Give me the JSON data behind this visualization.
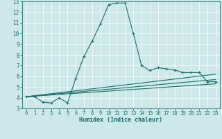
{
  "xlabel": "Humidex (Indice chaleur)",
  "bg_color": "#cce8e8",
  "line_color": "#1a6b6b",
  "grid_color": "#ffffff",
  "xlim": [
    -0.5,
    23.5
  ],
  "ylim": [
    3,
    13
  ],
  "xticks": [
    0,
    1,
    2,
    3,
    4,
    5,
    6,
    7,
    8,
    9,
    10,
    11,
    12,
    13,
    14,
    15,
    16,
    17,
    18,
    19,
    20,
    21,
    22,
    23
  ],
  "yticks": [
    3,
    4,
    5,
    6,
    7,
    8,
    9,
    10,
    11,
    12,
    13
  ],
  "curve1_x": [
    0,
    1,
    2,
    3,
    4,
    5,
    6,
    7,
    8,
    9,
    10,
    11,
    12,
    13,
    14,
    15,
    16,
    17,
    18,
    19,
    20,
    21,
    22,
    23
  ],
  "curve1_y": [
    4.1,
    4.1,
    3.6,
    3.5,
    4.0,
    3.5,
    5.8,
    7.85,
    9.3,
    10.9,
    12.7,
    12.85,
    12.85,
    10.0,
    7.0,
    6.55,
    6.8,
    6.7,
    6.6,
    6.35,
    6.35,
    6.35,
    5.5,
    5.5
  ],
  "curve2_x": [
    0,
    23
  ],
  "curve2_y": [
    4.1,
    6.2
  ],
  "curve3_x": [
    0,
    23
  ],
  "curve3_y": [
    4.1,
    5.7
  ],
  "curve4_x": [
    0,
    23
  ],
  "curve4_y": [
    4.1,
    5.3
  ]
}
